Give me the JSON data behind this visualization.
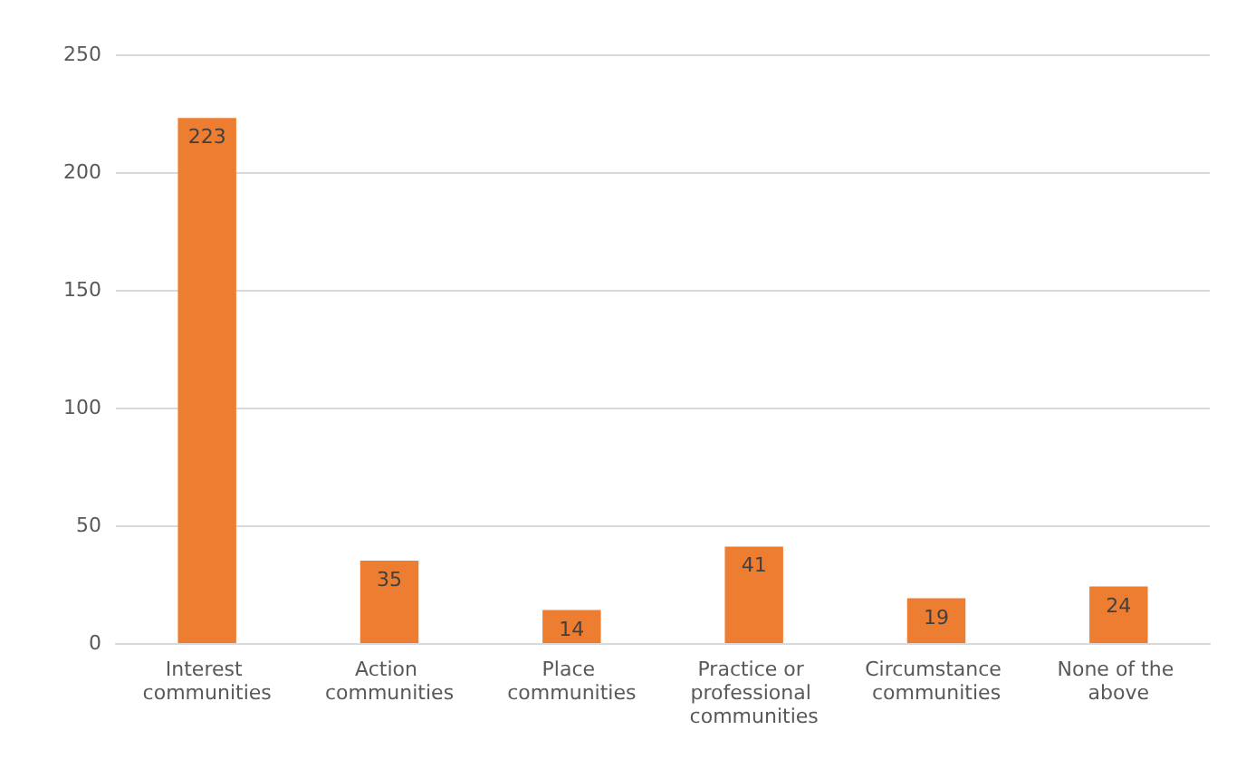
{
  "chart_data": {
    "type": "bar",
    "categories": [
      "Interest communities",
      "Action communities",
      "Place communities",
      "Practice or professional communities",
      "Circumstance communities",
      "None of the above"
    ],
    "values": [
      223,
      35,
      14,
      41,
      19,
      24
    ],
    "color": "#ed7d31",
    "ylim": [
      0,
      250
    ],
    "yticks": [
      0,
      50,
      100,
      150,
      200,
      250
    ],
    "grid": "y",
    "data_labels": true
  }
}
